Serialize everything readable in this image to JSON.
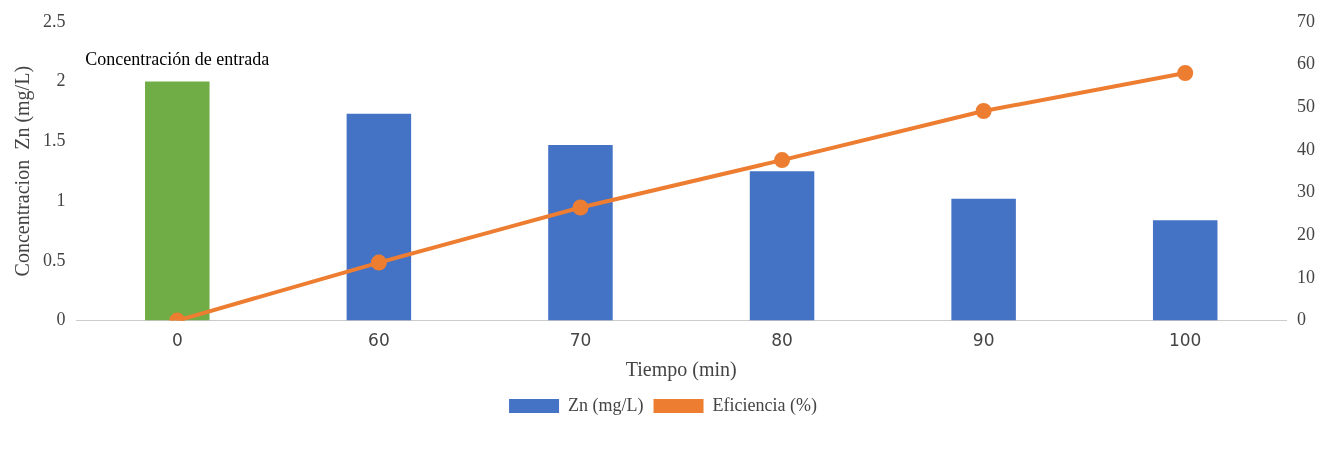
{
  "chart_data": {
    "type": "bar",
    "xlabel": "Tiempo (min)",
    "ylabel": "Concentracion  Zn (mg/L)",
    "categories": [
      "0",
      "60",
      "70",
      "80",
      "90",
      "100"
    ],
    "series": [
      {
        "name": "Zn (mg/L)",
        "color": "#4472c4",
        "colors": [
          "#70ad47",
          "#4472c4",
          "#4472c4",
          "#4472c4",
          "#4472c4",
          "#4472c4"
        ],
        "values": [
          2.0,
          1.73,
          1.47,
          1.25,
          1.02,
          0.84
        ]
      },
      {
        "name": "Eficiencia (%)",
        "type": "line",
        "axis": "y2",
        "color": "#ed7d31",
        "marker": "circle",
        "values": [
          0,
          13.6,
          26.5,
          37.6,
          49.1,
          58.0
        ]
      }
    ],
    "ylim": [
      0,
      2.5
    ],
    "yticks": [
      0,
      0.5,
      1,
      1.5,
      2,
      2.5
    ],
    "y2lim": [
      0,
      70
    ],
    "y2ticks": [
      0,
      10,
      20,
      30,
      40,
      50,
      60,
      70
    ],
    "annotations": [
      {
        "text": "Concentración de entrada",
        "x": "0",
        "y": 2.0
      }
    ],
    "grid": false,
    "legend": "bottom"
  }
}
